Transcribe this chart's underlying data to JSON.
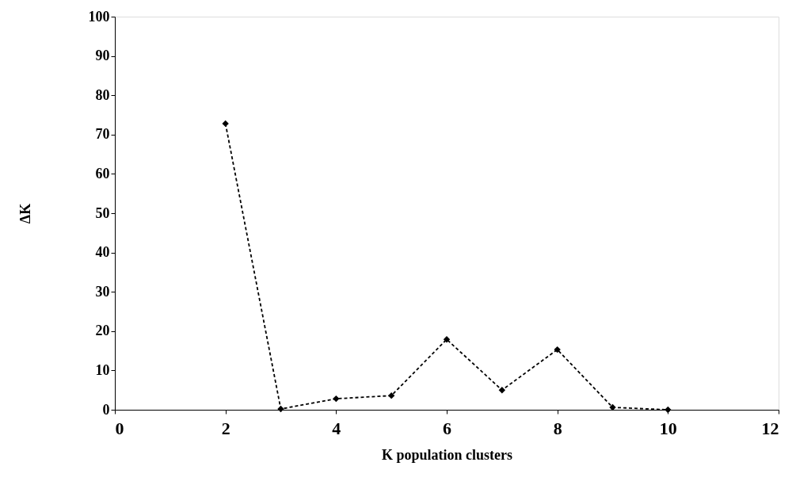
{
  "chart_data": {
    "type": "line",
    "xlabel": "K population clusters",
    "ylabel": "ΔK",
    "x": [
      2,
      3,
      4,
      5,
      6,
      7,
      8,
      9,
      10
    ],
    "series": [
      {
        "color": "#000000",
        "values": [
          72.8,
          0.2,
          2.8,
          3.6,
          17.9,
          5.0,
          15.3,
          0.6,
          0.0
        ]
      }
    ],
    "xlim": [
      0,
      12
    ],
    "xticks": [
      0,
      2,
      4,
      6,
      8,
      10,
      12
    ],
    "ylim": [
      0,
      100
    ],
    "yticks": [
      0,
      10,
      20,
      30,
      40,
      50,
      60,
      70,
      80,
      90,
      100
    ],
    "grid": false,
    "legend": false,
    "marker": "diamond",
    "line_style": "dashed"
  }
}
